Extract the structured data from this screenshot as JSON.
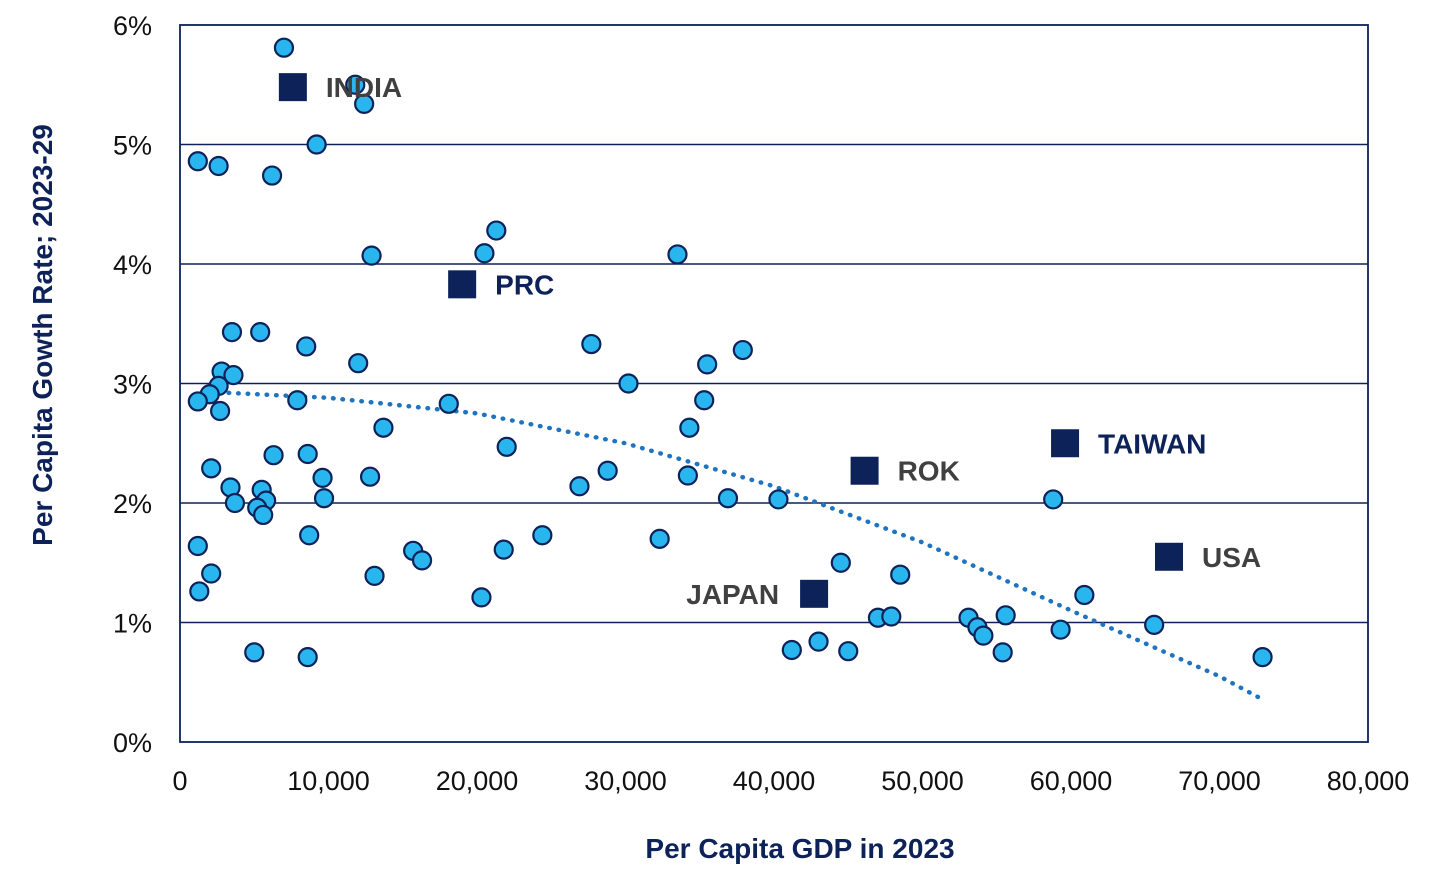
{
  "colors": {
    "navy": "#0d2259",
    "point_fill": "#29b6ee",
    "point_stroke": "#0d2259",
    "trend": "#1f74c2",
    "label_dark": "#404040",
    "grid": "#0d2259"
  },
  "chart_data": {
    "type": "scatter",
    "title": "",
    "xlabel": "Per Capita GDP in 2023",
    "ylabel": "Per Capita Gowth Rate; 2023-29",
    "xlim": [
      0,
      80000
    ],
    "ylim": [
      0,
      6
    ],
    "grid": "horizontal",
    "x_ticks": [
      0,
      10000,
      20000,
      30000,
      40000,
      50000,
      60000,
      70000,
      80000
    ],
    "x_tick_labels": [
      "0",
      "10,000",
      "20,000",
      "30,000",
      "40,000",
      "50,000",
      "60,000",
      "70,000",
      "80,000"
    ],
    "y_ticks": [
      0,
      1,
      2,
      3,
      4,
      5,
      6
    ],
    "y_tick_labels": [
      "0%",
      "1%",
      "2%",
      "3%",
      "4%",
      "5%",
      "6%"
    ],
    "points": [
      {
        "x": 7000,
        "y": 5.81
      },
      {
        "x": 11800,
        "y": 5.5
      },
      {
        "x": 12400,
        "y": 5.34
      },
      {
        "x": 1200,
        "y": 4.86
      },
      {
        "x": 2600,
        "y": 4.82
      },
      {
        "x": 9200,
        "y": 5.0
      },
      {
        "x": 6200,
        "y": 4.74
      },
      {
        "x": 12900,
        "y": 4.07
      },
      {
        "x": 21300,
        "y": 4.28
      },
      {
        "x": 20500,
        "y": 4.09
      },
      {
        "x": 33500,
        "y": 4.08
      },
      {
        "x": 3500,
        "y": 3.43
      },
      {
        "x": 5400,
        "y": 3.43
      },
      {
        "x": 8500,
        "y": 3.31
      },
      {
        "x": 12000,
        "y": 3.17
      },
      {
        "x": 27700,
        "y": 3.33
      },
      {
        "x": 35500,
        "y": 3.16
      },
      {
        "x": 37900,
        "y": 3.28
      },
      {
        "x": 2800,
        "y": 3.1
      },
      {
        "x": 3600,
        "y": 3.07
      },
      {
        "x": 2600,
        "y": 2.98
      },
      {
        "x": 2000,
        "y": 2.91
      },
      {
        "x": 1200,
        "y": 2.85
      },
      {
        "x": 2700,
        "y": 2.77
      },
      {
        "x": 7900,
        "y": 2.86
      },
      {
        "x": 18100,
        "y": 2.83
      },
      {
        "x": 30200,
        "y": 3.0
      },
      {
        "x": 35300,
        "y": 2.86
      },
      {
        "x": 13700,
        "y": 2.63
      },
      {
        "x": 34300,
        "y": 2.63
      },
      {
        "x": 6300,
        "y": 2.4
      },
      {
        "x": 8600,
        "y": 2.41
      },
      {
        "x": 22000,
        "y": 2.47
      },
      {
        "x": 2100,
        "y": 2.29
      },
      {
        "x": 9600,
        "y": 2.21
      },
      {
        "x": 12800,
        "y": 2.22
      },
      {
        "x": 28800,
        "y": 2.27
      },
      {
        "x": 34200,
        "y": 2.23
      },
      {
        "x": 3400,
        "y": 2.13
      },
      {
        "x": 5500,
        "y": 2.11
      },
      {
        "x": 26900,
        "y": 2.14
      },
      {
        "x": 3700,
        "y": 2.0
      },
      {
        "x": 5800,
        "y": 2.02
      },
      {
        "x": 9700,
        "y": 2.04
      },
      {
        "x": 36900,
        "y": 2.04
      },
      {
        "x": 40300,
        "y": 2.03
      },
      {
        "x": 58800,
        "y": 2.03
      },
      {
        "x": 5200,
        "y": 1.96
      },
      {
        "x": 5600,
        "y": 1.9
      },
      {
        "x": 8700,
        "y": 1.73
      },
      {
        "x": 24400,
        "y": 1.73
      },
      {
        "x": 32300,
        "y": 1.7
      },
      {
        "x": 1200,
        "y": 1.64
      },
      {
        "x": 15700,
        "y": 1.6
      },
      {
        "x": 21800,
        "y": 1.61
      },
      {
        "x": 16300,
        "y": 1.52
      },
      {
        "x": 44500,
        "y": 1.5
      },
      {
        "x": 2100,
        "y": 1.41
      },
      {
        "x": 13100,
        "y": 1.39
      },
      {
        "x": 48500,
        "y": 1.4
      },
      {
        "x": 1300,
        "y": 1.26
      },
      {
        "x": 20300,
        "y": 1.21
      },
      {
        "x": 60900,
        "y": 1.23
      },
      {
        "x": 47000,
        "y": 1.04
      },
      {
        "x": 47900,
        "y": 1.05
      },
      {
        "x": 53100,
        "y": 1.04
      },
      {
        "x": 55600,
        "y": 1.06
      },
      {
        "x": 53700,
        "y": 0.96
      },
      {
        "x": 54100,
        "y": 0.89
      },
      {
        "x": 59300,
        "y": 0.94
      },
      {
        "x": 65600,
        "y": 0.98
      },
      {
        "x": 41200,
        "y": 0.77
      },
      {
        "x": 43000,
        "y": 0.84
      },
      {
        "x": 45000,
        "y": 0.76
      },
      {
        "x": 55400,
        "y": 0.75
      },
      {
        "x": 5000,
        "y": 0.75
      },
      {
        "x": 8600,
        "y": 0.71
      },
      {
        "x": 72900,
        "y": 0.71
      }
    ],
    "highlighted": [
      {
        "label": "INDIA",
        "x": 7600,
        "y": 5.48,
        "show_marker": true,
        "label_color": "#404040",
        "label_side": "right"
      },
      {
        "label": "PRC",
        "x": 19000,
        "y": 3.83,
        "show_marker": true,
        "label_color": "#0d2259",
        "label_side": "right"
      },
      {
        "label": "ROK",
        "x": 46100,
        "y": 2.27,
        "show_marker": true,
        "label_color": "#404040",
        "label_side": "right"
      },
      {
        "label": "TAIWAN",
        "x": 59600,
        "y": 2.5,
        "show_marker": true,
        "label_color": "#0d2259",
        "label_side": "right"
      },
      {
        "label": "USA",
        "x": 66600,
        "y": 1.55,
        "show_marker": true,
        "label_color": "#404040",
        "label_side": "right"
      },
      {
        "label": "JAPAN",
        "x": 42700,
        "y": 1.24,
        "show_marker": true,
        "label_color": "#404040",
        "label_side": "left"
      }
    ],
    "trendline": {
      "style": "dotted",
      "type": "polynomial",
      "x": [
        2000,
        10000,
        20000,
        30000,
        40000,
        50000,
        60000,
        70000,
        73000
      ],
      "y": [
        2.93,
        2.88,
        2.75,
        2.5,
        2.14,
        1.67,
        1.1,
        0.55,
        0.35
      ]
    }
  }
}
